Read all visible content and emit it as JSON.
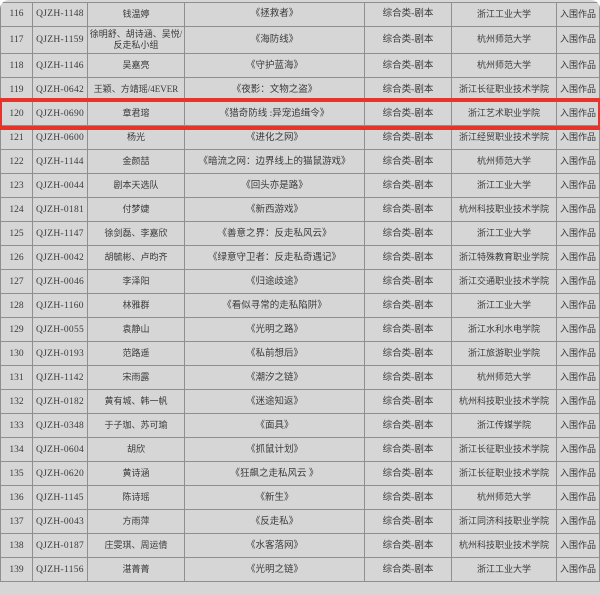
{
  "colors": {
    "page_background": "#ffffff",
    "table_background": "#d6d6d6",
    "grid_line": "#8f8f8f",
    "text": "#3a3a3a",
    "highlight_red": "#e8332a"
  },
  "table": {
    "highlighted_row_no": "120",
    "rows": [
      {
        "no": "116",
        "id": "QJZH-1148",
        "author": "钱温婷",
        "title": "《拯救者》",
        "category": "综合类-剧本",
        "university": "浙江工业大学",
        "status": "入围作品"
      },
      {
        "no": "117",
        "id": "QJZH-1159",
        "author": "徐明舒、胡诗涵、吴悦/反走私小组",
        "title": "《海防线》",
        "category": "综合类-剧本",
        "university": "杭州师范大学",
        "status": "入围作品"
      },
      {
        "no": "118",
        "id": "QJZH-1146",
        "author": "吴嘉亮",
        "title": "《守护蓝海》",
        "category": "综合类-剧本",
        "university": "杭州师范大学",
        "status": "入围作品"
      },
      {
        "no": "119",
        "id": "QJZH-0642",
        "author": "王颖、方靖瑶/4EVER",
        "title": "《夜影：文物之盗》",
        "category": "综合类-剧本",
        "university": "浙江长征职业技术学院",
        "status": "入围作品"
      },
      {
        "no": "120",
        "id": "QJZH-0690",
        "author": "章君瑢",
        "title": "《猎奇防线 :异宠追缉令》",
        "category": "综合类-剧本",
        "university": "浙江艺术职业学院",
        "status": "入围作品"
      },
      {
        "no": "121",
        "id": "QJZH-0600",
        "author": "杨光",
        "title": "《进化之网》",
        "category": "综合类-剧本",
        "university": "浙江经贸职业技术学院",
        "status": "入围作品"
      },
      {
        "no": "122",
        "id": "QJZH-1144",
        "author": "金颜喆",
        "title": "《暗流之网：边界线上的猫鼠游戏》",
        "category": "综合类-剧本",
        "university": "杭州师范大学",
        "status": "入围作品"
      },
      {
        "no": "123",
        "id": "QJZH-0044",
        "author": "剧本天选队",
        "title": "《回头亦是路》",
        "category": "综合类-剧本",
        "university": "浙江工业大学",
        "status": "入围作品"
      },
      {
        "no": "124",
        "id": "QJZH-0181",
        "author": "付梦婕",
        "title": "《新西游戏》",
        "category": "综合类-剧本",
        "university": "杭州科技职业技术学院",
        "status": "入围作品"
      },
      {
        "no": "125",
        "id": "QJZH-1147",
        "author": "徐剑磊、李嘉欣",
        "title": "《善意之界：反走私风云》",
        "category": "综合类-剧本",
        "university": "浙江工业大学",
        "status": "入围作品"
      },
      {
        "no": "126",
        "id": "QJZH-0042",
        "author": "胡毓彬、卢昀齐",
        "title": "《绿意守卫者：反走私奇遇记》",
        "category": "综合类-剧本",
        "university": "浙江特殊教育职业学院",
        "status": "入围作品"
      },
      {
        "no": "127",
        "id": "QJZH-0046",
        "author": "李泽阳",
        "title": "《归途歧途》",
        "category": "综合类-剧本",
        "university": "浙江交通职业技术学院",
        "status": "入围作品"
      },
      {
        "no": "128",
        "id": "QJZH-1160",
        "author": "林雅群",
        "title": "《看似寻常的走私陷阱》",
        "category": "综合类-剧本",
        "university": "浙江工业大学",
        "status": "入围作品"
      },
      {
        "no": "129",
        "id": "QJZH-0055",
        "author": "袁静山",
        "title": "《光明之路》",
        "category": "综合类-剧本",
        "university": "浙江水利水电学院",
        "status": "入围作品"
      },
      {
        "no": "130",
        "id": "QJZH-0193",
        "author": "范路遥",
        "title": "《私前想后》",
        "category": "综合类-剧本",
        "university": "浙江旅游职业学院",
        "status": "入围作品"
      },
      {
        "no": "131",
        "id": "QJZH-1142",
        "author": "宋雨露",
        "title": "《潮汐之链》",
        "category": "综合类-剧本",
        "university": "杭州师范大学",
        "status": "入围作品"
      },
      {
        "no": "132",
        "id": "QJZH-0182",
        "author": "黄有城、韩一帆",
        "title": "《迷途知返》",
        "category": "综合类-剧本",
        "university": "杭州科技职业技术学院",
        "status": "入围作品"
      },
      {
        "no": "133",
        "id": "QJZH-0348",
        "author": "于子珈、苏可瑜",
        "title": "《面具》",
        "category": "综合类-剧本",
        "university": "浙江传媒学院",
        "status": "入围作品"
      },
      {
        "no": "134",
        "id": "QJZH-0604",
        "author": "胡欣",
        "title": "《抓鼠计划》",
        "category": "综合类-剧本",
        "university": "浙江长征职业技术学院",
        "status": "入围作品"
      },
      {
        "no": "135",
        "id": "QJZH-0620",
        "author": "黄诗涵",
        "title": "《狂飙之走私风云 》",
        "category": "综合类-剧本",
        "university": "浙江长征职业技术学院",
        "status": "入围作品"
      },
      {
        "no": "136",
        "id": "QJZH-1145",
        "author": "陈诗瑶",
        "title": "《新生》",
        "category": "综合类-剧本",
        "university": "杭州师范大学",
        "status": "入围作品"
      },
      {
        "no": "137",
        "id": "QJZH-0043",
        "author": "方雨萍",
        "title": "《反走私》",
        "category": "综合类-剧本",
        "university": "浙江同济科技职业学院",
        "status": "入围作品"
      },
      {
        "no": "138",
        "id": "QJZH-0187",
        "author": "庄雯琪、周运倩",
        "title": "《水客落网》",
        "category": "综合类-剧本",
        "university": "杭州科技职业技术学院",
        "status": "入围作品"
      },
      {
        "no": "139",
        "id": "QJZH-1156",
        "author": "湛菁菁",
        "title": "《光明之链》",
        "category": "综合类-剧本",
        "university": "浙江工业大学",
        "status": "入围作品"
      }
    ]
  }
}
